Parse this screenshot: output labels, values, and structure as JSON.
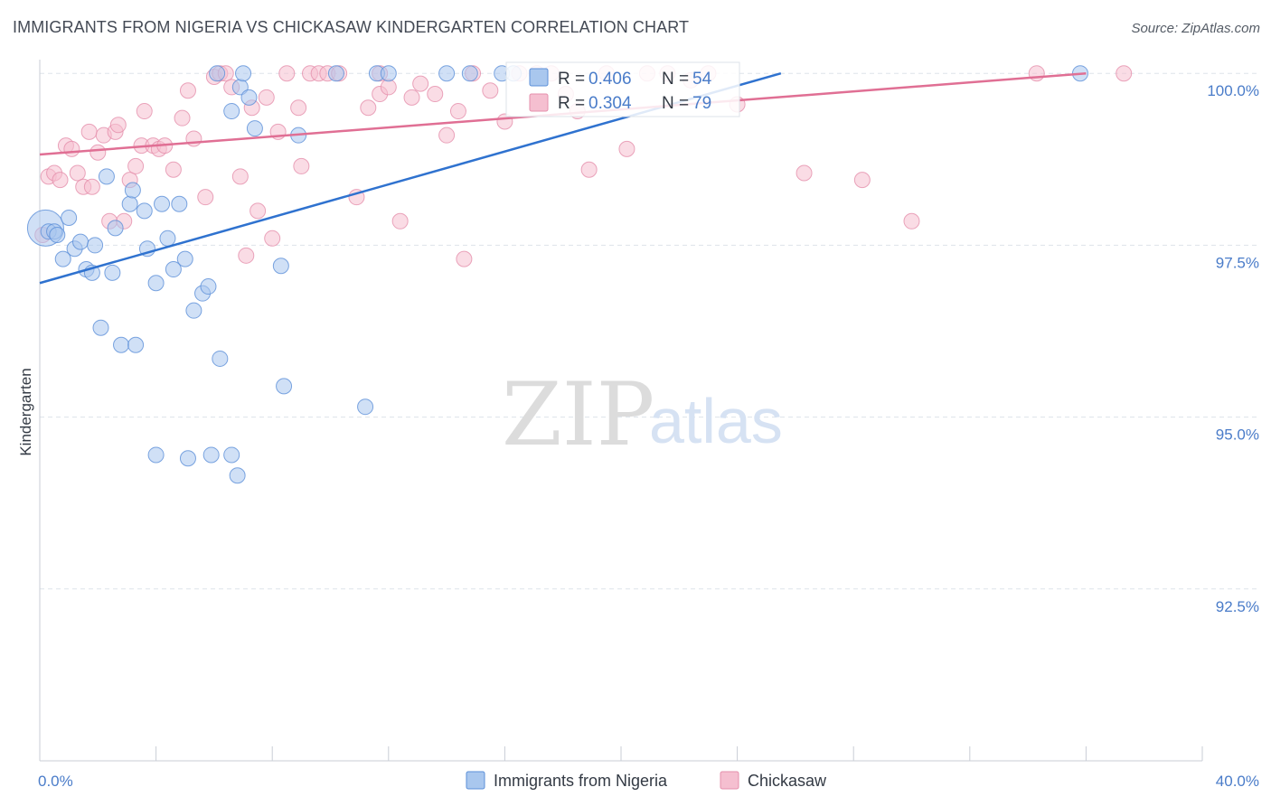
{
  "title": "IMMIGRANTS FROM NIGERIA VS CHICKASAW KINDERGARTEN CORRELATION CHART",
  "source": "Source: ZipAtlas.com",
  "watermark": {
    "part1": "ZIP",
    "part2": "atlas"
  },
  "colors": {
    "blue_fill": "#a9c7ee",
    "blue_stroke": "#5b8fd8",
    "blue_line": "#2f72cf",
    "pink_fill": "#f5bfd0",
    "pink_stroke": "#e58fab",
    "pink_line": "#e06f94",
    "axis_text": "#4a7cc9",
    "grid": "#dde3ea"
  },
  "stats_box": {
    "rows": [
      {
        "r_label": "R = ",
        "r_value": "0.406",
        "n_label": "N = ",
        "n_value": "54"
      },
      {
        "r_label": "R = ",
        "r_value": "0.304",
        "n_label": "N = ",
        "n_value": "79"
      }
    ]
  },
  "chart_data": {
    "type": "scatter",
    "title": "IMMIGRANTS FROM NIGERIA VS CHICKASAW KINDERGARTEN CORRELATION CHART",
    "xlabel": "",
    "ylabel": "Kindergarten",
    "xlim": [
      0,
      40
    ],
    "ylim": [
      90.0,
      100.2
    ],
    "x_tick_labels": [
      {
        "value": 0,
        "label": "0.0%"
      },
      {
        "value": 40,
        "label": "40.0%"
      }
    ],
    "y_tick_labels": [
      {
        "value": 100.0,
        "label": "100.0%"
      },
      {
        "value": 97.5,
        "label": "97.5%"
      },
      {
        "value": 95.0,
        "label": "95.0%"
      },
      {
        "value": 92.5,
        "label": "92.5%"
      }
    ],
    "x_minor_ticks": [
      0,
      4,
      8,
      12,
      16,
      20,
      24,
      28,
      32,
      36,
      40
    ],
    "series": [
      {
        "name": "Immigrants from Nigeria",
        "color": "blue",
        "r": 0.406,
        "n": 54,
        "trendline": {
          "x": [
            0,
            25.5
          ],
          "y": [
            96.95,
            100.0
          ]
        },
        "points": [
          [
            0.2,
            97.75
          ],
          [
            0.3,
            97.7
          ],
          [
            0.5,
            97.7
          ],
          [
            0.6,
            97.65
          ],
          [
            0.8,
            97.3
          ],
          [
            1.0,
            97.9
          ],
          [
            1.2,
            97.45
          ],
          [
            1.4,
            97.55
          ],
          [
            1.6,
            97.15
          ],
          [
            1.8,
            97.1
          ],
          [
            1.9,
            97.5
          ],
          [
            2.1,
            96.3
          ],
          [
            2.3,
            98.5
          ],
          [
            2.5,
            97.1
          ],
          [
            2.6,
            97.75
          ],
          [
            2.8,
            96.05
          ],
          [
            3.1,
            98.1
          ],
          [
            3.2,
            98.3
          ],
          [
            3.3,
            96.05
          ],
          [
            3.6,
            98.0
          ],
          [
            3.7,
            97.45
          ],
          [
            4.0,
            96.95
          ],
          [
            4.2,
            98.1
          ],
          [
            4.4,
            97.6
          ],
          [
            4.6,
            97.15
          ],
          [
            4.8,
            98.1
          ],
          [
            5.0,
            97.3
          ],
          [
            5.3,
            96.55
          ],
          [
            5.6,
            96.8
          ],
          [
            5.8,
            96.9
          ],
          [
            6.1,
            100.0
          ],
          [
            6.2,
            95.85
          ],
          [
            6.6,
            99.45
          ],
          [
            6.9,
            99.8
          ],
          [
            7.0,
            100.0
          ],
          [
            7.2,
            99.65
          ],
          [
            7.4,
            99.2
          ],
          [
            8.3,
            97.2
          ],
          [
            8.4,
            95.45
          ],
          [
            8.9,
            99.1
          ],
          [
            10.2,
            100.0
          ],
          [
            11.2,
            95.15
          ],
          [
            11.6,
            100.0
          ],
          [
            12.0,
            100.0
          ],
          [
            14.0,
            100.0
          ],
          [
            14.8,
            100.0
          ],
          [
            15.9,
            100.0
          ],
          [
            16.3,
            100.0
          ],
          [
            35.8,
            100.0
          ],
          [
            4.0,
            94.45
          ],
          [
            5.1,
            94.4
          ],
          [
            5.9,
            94.45
          ],
          [
            6.6,
            94.45
          ],
          [
            6.8,
            94.15
          ]
        ]
      },
      {
        "name": "Chickasaw",
        "color": "pink",
        "r": 0.304,
        "n": 79,
        "trendline": {
          "x": [
            0,
            36
          ],
          "y": [
            98.82,
            100.0
          ]
        },
        "points": [
          [
            0.1,
            97.65
          ],
          [
            0.3,
            98.5
          ],
          [
            0.5,
            98.55
          ],
          [
            0.7,
            98.45
          ],
          [
            0.9,
            98.95
          ],
          [
            1.1,
            98.9
          ],
          [
            1.3,
            98.55
          ],
          [
            1.5,
            98.35
          ],
          [
            1.7,
            99.15
          ],
          [
            1.8,
            98.35
          ],
          [
            2.0,
            98.85
          ],
          [
            2.2,
            99.1
          ],
          [
            2.4,
            97.85
          ],
          [
            2.6,
            99.15
          ],
          [
            2.7,
            99.25
          ],
          [
            2.9,
            97.85
          ],
          [
            3.1,
            98.45
          ],
          [
            3.3,
            98.65
          ],
          [
            3.5,
            98.95
          ],
          [
            3.6,
            99.45
          ],
          [
            3.9,
            98.95
          ],
          [
            4.1,
            98.9
          ],
          [
            4.3,
            98.95
          ],
          [
            4.6,
            98.6
          ],
          [
            4.9,
            99.35
          ],
          [
            5.1,
            99.75
          ],
          [
            5.3,
            99.05
          ],
          [
            5.7,
            98.2
          ],
          [
            6.0,
            99.95
          ],
          [
            6.2,
            100.0
          ],
          [
            6.4,
            100.0
          ],
          [
            6.6,
            99.8
          ],
          [
            6.9,
            98.5
          ],
          [
            7.1,
            97.35
          ],
          [
            7.3,
            99.5
          ],
          [
            7.5,
            98.0
          ],
          [
            7.8,
            99.65
          ],
          [
            8.0,
            97.6
          ],
          [
            8.2,
            99.15
          ],
          [
            8.5,
            100.0
          ],
          [
            8.9,
            99.5
          ],
          [
            9.0,
            98.65
          ],
          [
            9.3,
            100.0
          ],
          [
            9.6,
            100.0
          ],
          [
            9.9,
            100.0
          ],
          [
            10.3,
            100.0
          ],
          [
            10.9,
            98.2
          ],
          [
            11.3,
            99.5
          ],
          [
            11.7,
            99.7
          ],
          [
            12.0,
            99.8
          ],
          [
            12.4,
            97.85
          ],
          [
            12.8,
            99.65
          ],
          [
            13.1,
            99.85
          ],
          [
            13.6,
            99.7
          ],
          [
            14.0,
            99.1
          ],
          [
            14.4,
            99.45
          ],
          [
            14.9,
            100.0
          ],
          [
            15.5,
            99.75
          ],
          [
            16.0,
            99.3
          ],
          [
            16.5,
            100.0
          ],
          [
            17.1,
            100.0
          ],
          [
            17.6,
            100.0
          ],
          [
            18.1,
            99.7
          ],
          [
            18.5,
            99.45
          ],
          [
            18.9,
            98.6
          ],
          [
            19.5,
            100.0
          ],
          [
            20.2,
            98.9
          ],
          [
            20.9,
            100.0
          ],
          [
            21.6,
            100.0
          ],
          [
            22.4,
            99.9
          ],
          [
            23.0,
            100.0
          ],
          [
            24.0,
            99.55
          ],
          [
            26.3,
            98.55
          ],
          [
            28.3,
            98.45
          ],
          [
            30.0,
            97.85
          ],
          [
            34.3,
            100.0
          ],
          [
            37.3,
            100.0
          ],
          [
            14.6,
            97.3
          ],
          [
            11.7,
            100.0
          ]
        ]
      }
    ]
  }
}
